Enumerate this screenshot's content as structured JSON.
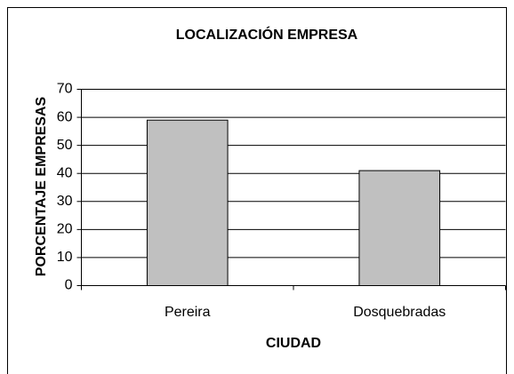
{
  "chart_data": {
    "type": "bar",
    "title": "LOCALIZACIÓN EMPRESA",
    "y_label": "PORCENTAJE EMPRESAS",
    "x_label": "CIUDAD",
    "categories": [
      "Pereira",
      "Dosquebradas"
    ],
    "values": [
      59,
      41
    ],
    "color": "#c0c0c0",
    "ylim": [
      0,
      70
    ],
    "yticks": [
      0,
      10,
      20,
      30,
      40,
      50,
      60,
      70
    ],
    "grid": true
  }
}
